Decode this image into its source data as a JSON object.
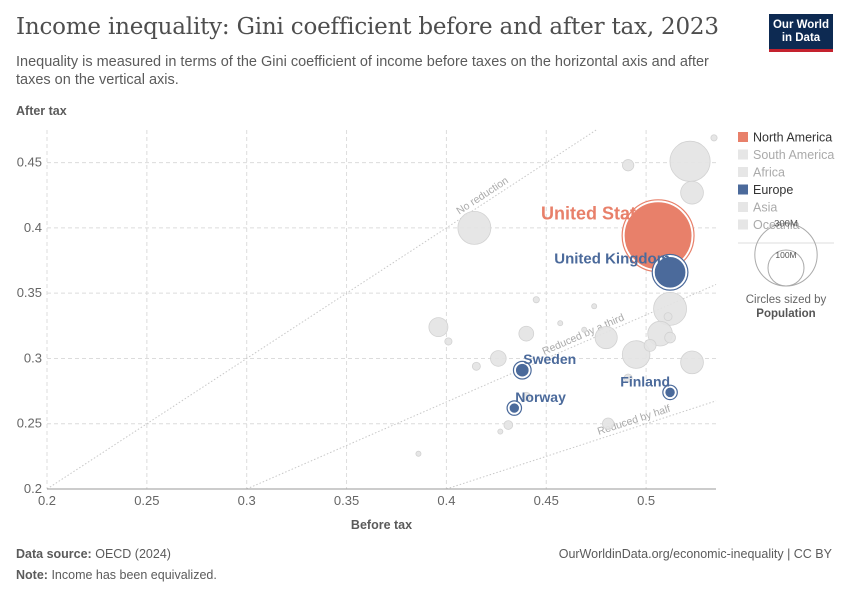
{
  "title": "Income inequality: Gini coefficient before and after tax, 2023",
  "subtitle": "Inequality is measured in terms of the Gini coefficient of income before taxes on the horizontal axis and after taxes on the vertical axis.",
  "logo": {
    "line1": "Our World",
    "line2": "in Data"
  },
  "footer": {
    "source_label": "Data source:",
    "source_text": "OECD (2024)",
    "url_text": "OurWorldinData.org/economic-inequality | CC BY",
    "note_label": "Note:",
    "note_text": "Income has been equivalized."
  },
  "colors": {
    "north_america": "#e8806a",
    "europe": "#4b6a9b",
    "other": "#e3e3e3",
    "grid": "#dcdcdc",
    "ref_line": "#c8c8c8"
  },
  "chart_data": {
    "type": "scatter",
    "xlabel": "Before tax",
    "ylabel": "After tax",
    "xlim": [
      0.2,
      0.535
    ],
    "ylim": [
      0.2,
      0.475
    ],
    "x_ticks": [
      "0.2",
      "0.25",
      "0.3",
      "0.35",
      "0.4",
      "0.45",
      "0.5"
    ],
    "y_ticks": [
      "0.2",
      "0.25",
      "0.3",
      "0.35",
      "0.4",
      "0.45"
    ],
    "grid": true,
    "reference_lines": [
      {
        "label": "No reduction",
        "ratio": 1.0
      },
      {
        "label": "Reduced by a third",
        "ratio": 0.6667
      },
      {
        "label": "Reduced by half",
        "ratio": 0.5
      }
    ],
    "legend": {
      "placement": "right",
      "entries": [
        {
          "label": "North America",
          "active": true,
          "color": "#e8806a"
        },
        {
          "label": "South America",
          "active": false,
          "color": "#e3e3e3"
        },
        {
          "label": "Africa",
          "active": false,
          "color": "#e3e3e3"
        },
        {
          "label": "Europe",
          "active": true,
          "color": "#4b6a9b"
        },
        {
          "label": "Asia",
          "active": false,
          "color": "#e3e3e3"
        },
        {
          "label": "Oceania",
          "active": false,
          "color": "#e3e3e3"
        }
      ]
    },
    "size_legend": {
      "title_line1": "Circles sized by",
      "title_line2": "Population",
      "large_label": "300M",
      "small_label": "100M"
    },
    "points": [
      {
        "label": "United States",
        "group": "north_america",
        "x": 0.506,
        "y": 0.394,
        "population": 335
      },
      {
        "label": "United Kingdom",
        "group": "europe",
        "x": 0.512,
        "y": 0.366,
        "population": 68
      },
      {
        "label": "Sweden",
        "group": "europe",
        "x": 0.438,
        "y": 0.291,
        "population": 10.5
      },
      {
        "label": "Finland",
        "group": "europe",
        "x": 0.512,
        "y": 0.274,
        "population": 5.5
      },
      {
        "label": "Norway",
        "group": "europe",
        "x": 0.434,
        "y": 0.262,
        "population": 5.5
      },
      {
        "label": "",
        "group": "other",
        "x": 0.522,
        "y": 0.451,
        "population": 125
      },
      {
        "label": "",
        "group": "other",
        "x": 0.523,
        "y": 0.427,
        "population": 40
      },
      {
        "label": "",
        "group": "other",
        "x": 0.491,
        "y": 0.448,
        "population": 10
      },
      {
        "label": "",
        "group": "other",
        "x": 0.534,
        "y": 0.469,
        "population": 3
      },
      {
        "label": "",
        "group": "other",
        "x": 0.414,
        "y": 0.4,
        "population": 84
      },
      {
        "label": "",
        "group": "other",
        "x": 0.512,
        "y": 0.338,
        "population": 84
      },
      {
        "label": "",
        "group": "other",
        "x": 0.396,
        "y": 0.324,
        "population": 28
      },
      {
        "label": "",
        "group": "other",
        "x": 0.401,
        "y": 0.313,
        "population": 4
      },
      {
        "label": "",
        "group": "other",
        "x": 0.44,
        "y": 0.319,
        "population": 17
      },
      {
        "label": "",
        "group": "other",
        "x": 0.445,
        "y": 0.345,
        "population": 3
      },
      {
        "label": "",
        "group": "other",
        "x": 0.457,
        "y": 0.327,
        "population": 2
      },
      {
        "label": "",
        "group": "other",
        "x": 0.469,
        "y": 0.322,
        "population": 2
      },
      {
        "label": "",
        "group": "other",
        "x": 0.474,
        "y": 0.34,
        "population": 2
      },
      {
        "label": "",
        "group": "other",
        "x": 0.48,
        "y": 0.316,
        "population": 38
      },
      {
        "label": "",
        "group": "other",
        "x": 0.495,
        "y": 0.303,
        "population": 59
      },
      {
        "label": "",
        "group": "other",
        "x": 0.502,
        "y": 0.31,
        "population": 11
      },
      {
        "label": "",
        "group": "other",
        "x": 0.507,
        "y": 0.319,
        "population": 47
      },
      {
        "label": "",
        "group": "other",
        "x": 0.512,
        "y": 0.316,
        "population": 9
      },
      {
        "label": "",
        "group": "other",
        "x": 0.511,
        "y": 0.332,
        "population": 5
      },
      {
        "label": "",
        "group": "other",
        "x": 0.523,
        "y": 0.297,
        "population": 40
      },
      {
        "label": "",
        "group": "other",
        "x": 0.426,
        "y": 0.3,
        "population": 19
      },
      {
        "label": "",
        "group": "other",
        "x": 0.415,
        "y": 0.294,
        "population": 5
      },
      {
        "label": "",
        "group": "other",
        "x": 0.491,
        "y": 0.285,
        "population": 5
      },
      {
        "label": "",
        "group": "other",
        "x": 0.44,
        "y": 0.271,
        "population": 5
      },
      {
        "label": "",
        "group": "other",
        "x": 0.481,
        "y": 0.25,
        "population": 10
      },
      {
        "label": "",
        "group": "other",
        "x": 0.431,
        "y": 0.249,
        "population": 6
      },
      {
        "label": "",
        "group": "other",
        "x": 0.427,
        "y": 0.244,
        "population": 2
      },
      {
        "label": "",
        "group": "other",
        "x": 0.386,
        "y": 0.227,
        "population": 2
      }
    ]
  }
}
